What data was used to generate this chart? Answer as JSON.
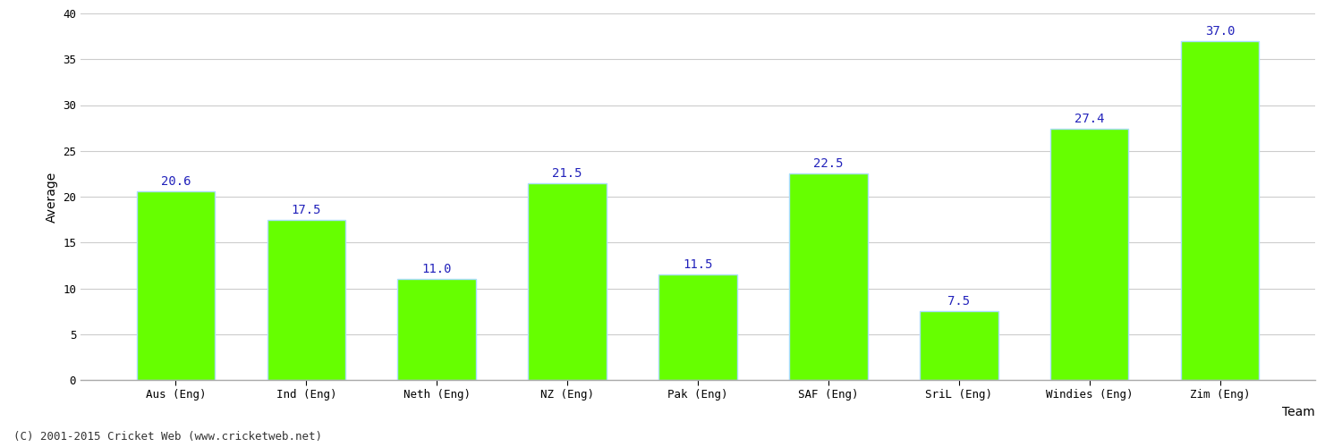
{
  "xlabel": "Team",
  "ylabel": "Average",
  "categories": [
    "Aus (Eng)",
    "Ind (Eng)",
    "Neth (Eng)",
    "NZ (Eng)",
    "Pak (Eng)",
    "SAF (Eng)",
    "SriL (Eng)",
    "Windies (Eng)",
    "Zim (Eng)"
  ],
  "values": [
    20.6,
    17.5,
    11.0,
    21.5,
    11.5,
    22.5,
    7.5,
    27.4,
    37.0
  ],
  "bar_color": "#66ff00",
  "bar_edge_color": "#aaddff",
  "value_label_color": "#2222bb",
  "value_label_fontsize": 10,
  "ylim": [
    0,
    40
  ],
  "yticks": [
    0,
    5,
    10,
    15,
    20,
    25,
    30,
    35,
    40
  ],
  "grid_color": "#cccccc",
  "background_color": "#ffffff",
  "tick_fontsize": 9,
  "xlabel_fontsize": 10,
  "ylabel_fontsize": 10,
  "footer_text": "(C) 2001-2015 Cricket Web (www.cricketweb.net)",
  "footer_fontsize": 9,
  "footer_color": "#333333",
  "bar_width": 0.6
}
